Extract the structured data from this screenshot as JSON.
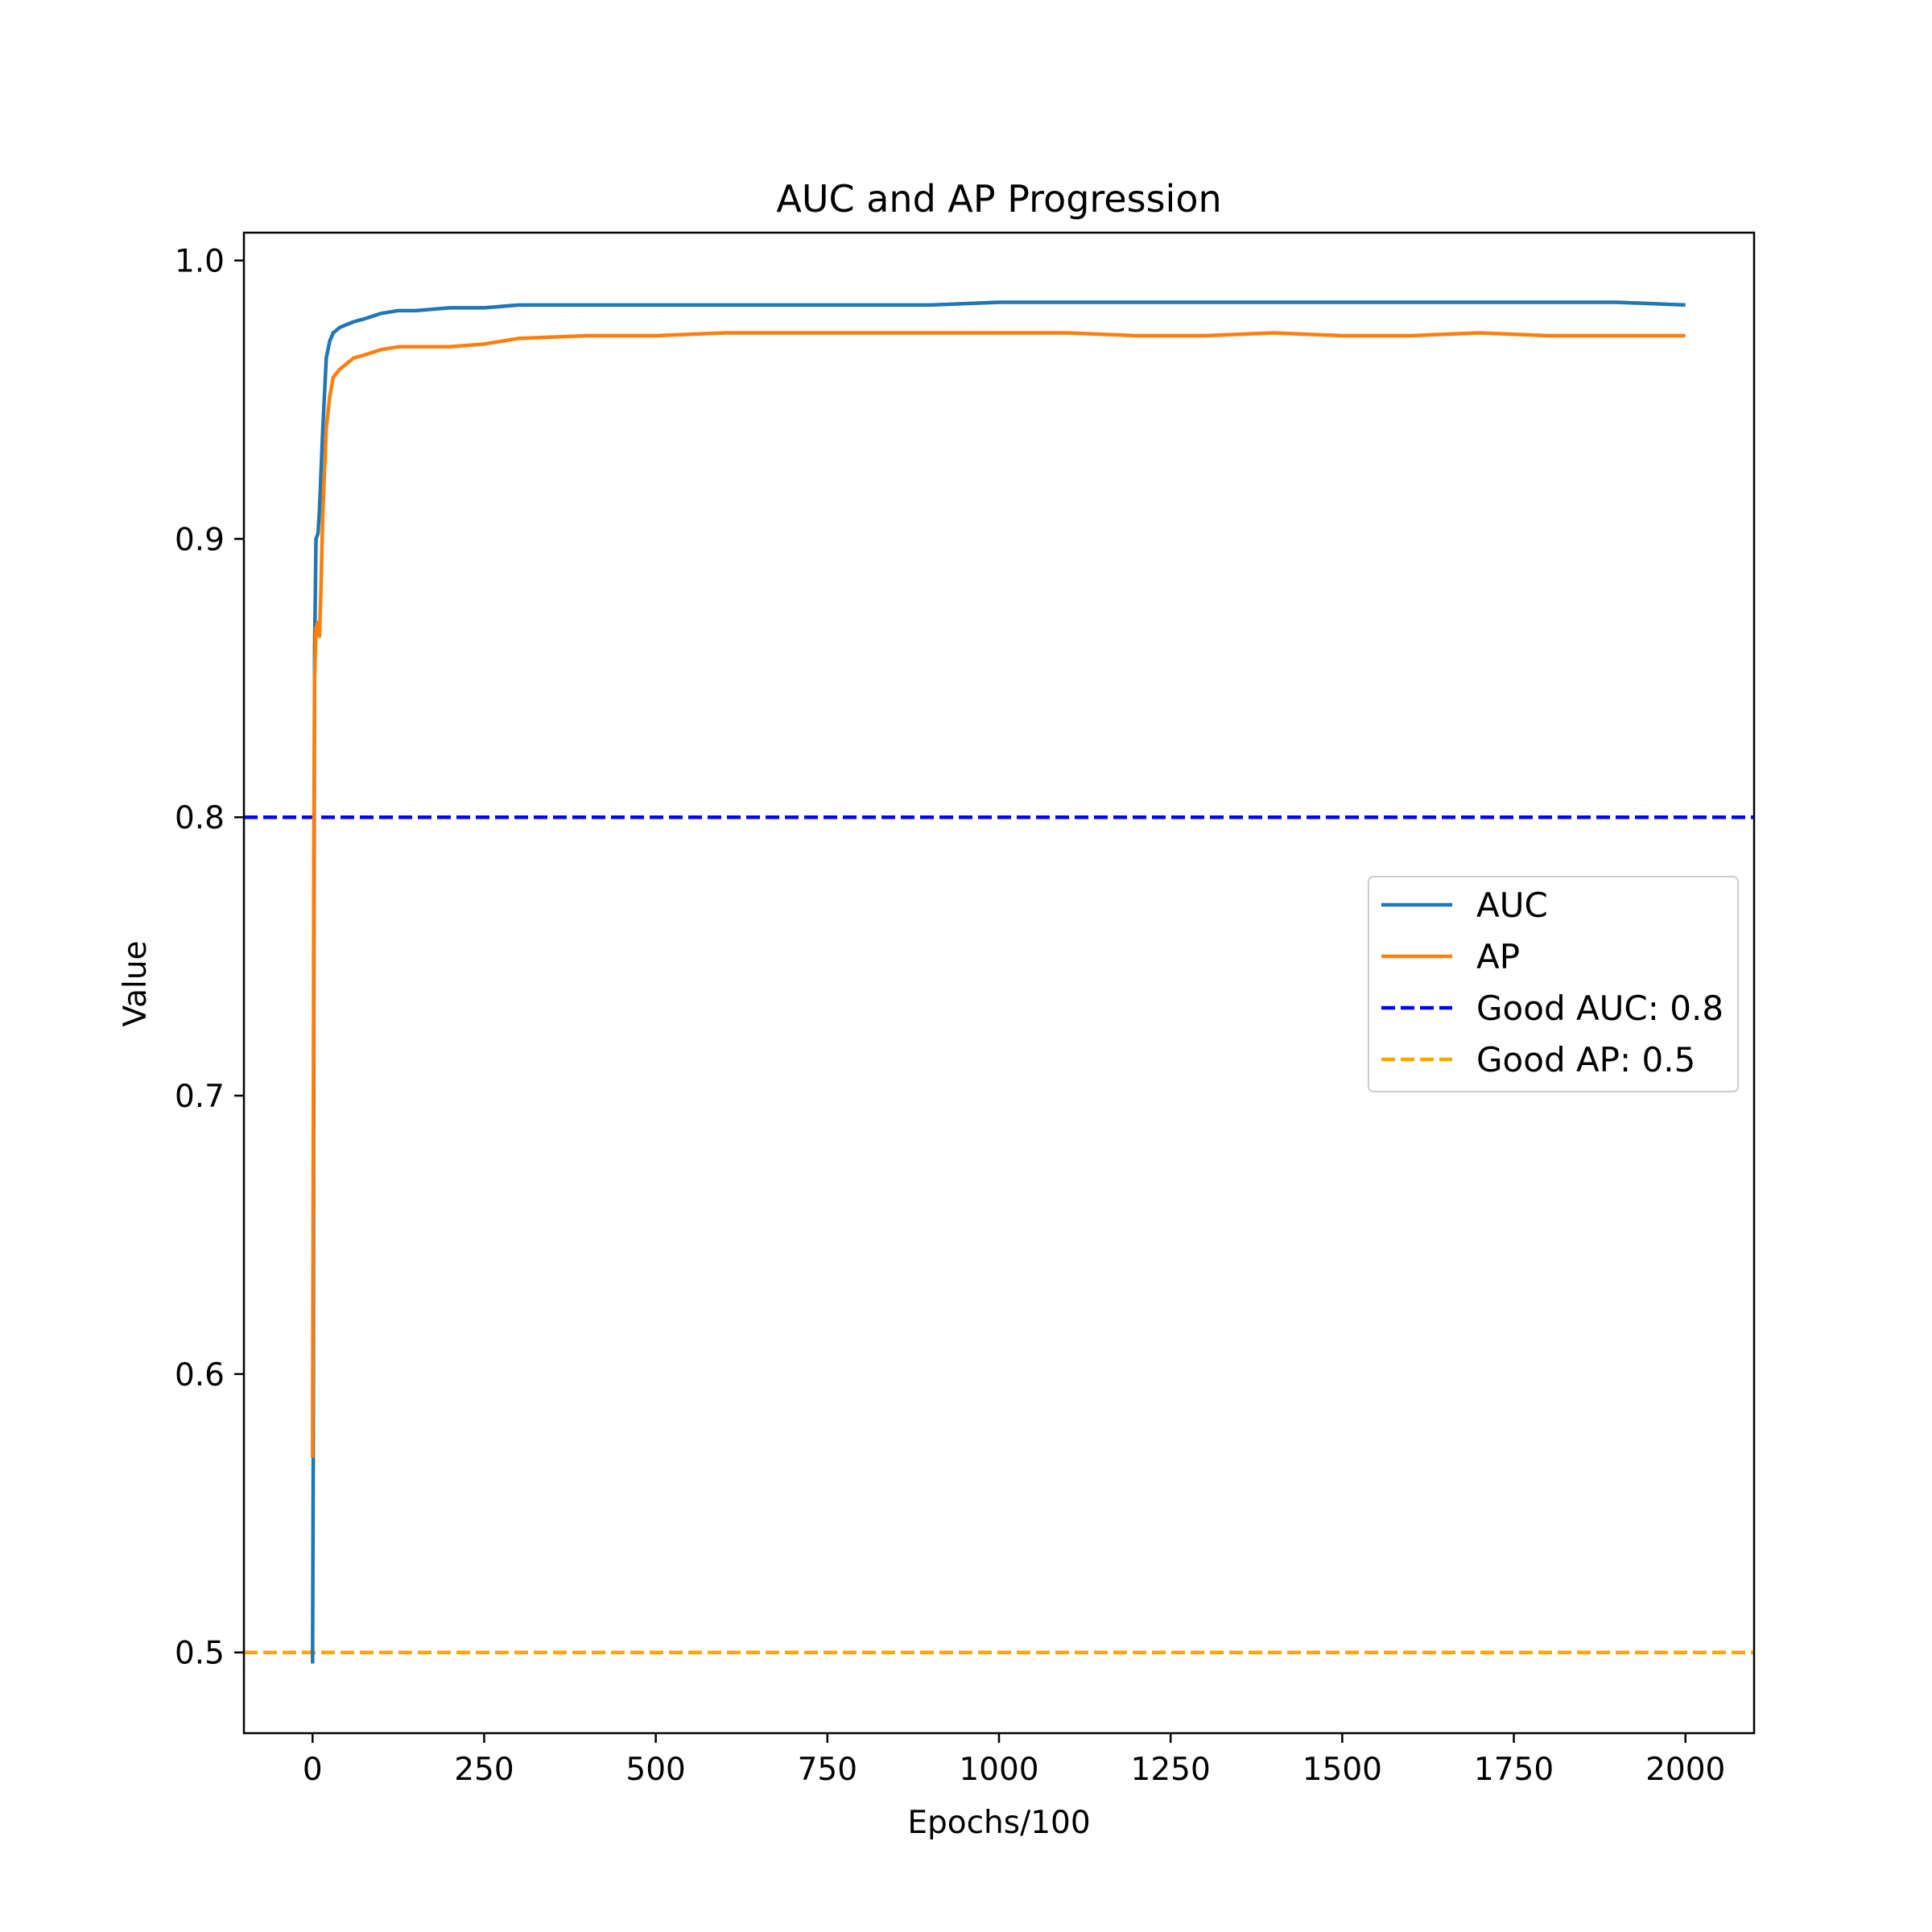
{
  "chart_data": {
    "type": "line",
    "title": "AUC and AP Progression",
    "xlabel": "Epochs/100",
    "ylabel": "Value",
    "xlim": [
      -100,
      2100
    ],
    "ylim": [
      0.471,
      1.01
    ],
    "xticks": [
      0,
      250,
      500,
      750,
      1000,
      1250,
      1500,
      1750,
      2000
    ],
    "yticks": [
      0.5,
      0.6,
      0.7,
      0.8,
      0.9,
      1.0
    ],
    "xtick_labels": [
      "0",
      "250",
      "500",
      "750",
      "1000",
      "1250",
      "1500",
      "1750",
      "2000"
    ],
    "ytick_labels": [
      "0.5",
      "0.6",
      "0.7",
      "0.8",
      "0.9",
      "1.0"
    ],
    "legend_position": "center-right",
    "series": [
      {
        "name": "AUC",
        "color": "#1f77b4",
        "style": "solid",
        "x": [
          0,
          1,
          2,
          3,
          5,
          8,
          10,
          15,
          20,
          25,
          30,
          40,
          50,
          60,
          75,
          100,
          125,
          150,
          200,
          250,
          300,
          400,
          500,
          600,
          700,
          800,
          900,
          1000,
          1100,
          1200,
          1300,
          1400,
          1500,
          1600,
          1700,
          1800,
          1900,
          2000
        ],
        "y": [
          0.496,
          0.57,
          0.75,
          0.86,
          0.9,
          0.902,
          0.91,
          0.94,
          0.965,
          0.971,
          0.974,
          0.976,
          0.977,
          0.978,
          0.979,
          0.981,
          0.982,
          0.982,
          0.983,
          0.983,
          0.984,
          0.984,
          0.984,
          0.984,
          0.984,
          0.984,
          0.984,
          0.985,
          0.985,
          0.985,
          0.985,
          0.985,
          0.985,
          0.985,
          0.985,
          0.985,
          0.985,
          0.984
        ]
      },
      {
        "name": "AP",
        "color": "#ff7f0e",
        "style": "solid",
        "x": [
          0,
          1,
          2,
          3,
          5,
          8,
          10,
          12,
          15,
          20,
          25,
          30,
          40,
          50,
          60,
          75,
          100,
          125,
          150,
          200,
          250,
          300,
          400,
          500,
          600,
          700,
          800,
          900,
          1000,
          1100,
          1200,
          1300,
          1400,
          1500,
          1600,
          1700,
          1800,
          1900,
          2000
        ],
        "y": [
          0.57,
          0.68,
          0.8,
          0.85,
          0.868,
          0.87,
          0.865,
          0.88,
          0.91,
          0.94,
          0.951,
          0.958,
          0.961,
          0.963,
          0.965,
          0.966,
          0.968,
          0.969,
          0.969,
          0.969,
          0.97,
          0.972,
          0.973,
          0.973,
          0.974,
          0.974,
          0.974,
          0.974,
          0.974,
          0.974,
          0.973,
          0.973,
          0.974,
          0.973,
          0.973,
          0.974,
          0.973,
          0.973,
          0.973
        ]
      }
    ],
    "reference_lines": [
      {
        "name": "Good AUC: 0.8",
        "y": 0.8,
        "color": "#0000ff",
        "style": "dashed"
      },
      {
        "name": "Good AP: 0.5",
        "y": 0.5,
        "color": "#ffa500",
        "style": "dashed"
      }
    ],
    "grid": false
  }
}
